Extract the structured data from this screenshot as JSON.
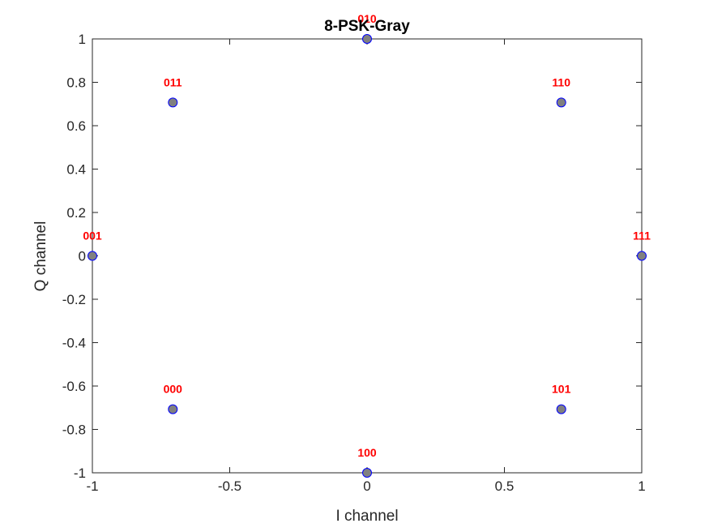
{
  "chart_data": {
    "type": "scatter",
    "title": "8-PSK-Gray",
    "xlabel": "I channel",
    "ylabel": "Q channel",
    "xlim": [
      -1,
      1
    ],
    "ylim": [
      -1,
      1
    ],
    "xticks": [
      -1,
      -0.5,
      0,
      0.5,
      1
    ],
    "xtick_labels": [
      "-1",
      "-0.5",
      "0",
      "0.5",
      "1"
    ],
    "yticks": [
      -1,
      -0.8,
      -0.6,
      -0.4,
      -0.2,
      0,
      0.2,
      0.4,
      0.6,
      0.8,
      1
    ],
    "ytick_labels": [
      "-1",
      "-0.8",
      "-0.6",
      "-0.4",
      "-0.2",
      "0",
      "0.2",
      "0.4",
      "0.6",
      "0.8",
      "1"
    ],
    "grid": false,
    "points": [
      {
        "x": -1,
        "y": 0,
        "label": "001"
      },
      {
        "x": -0.7071,
        "y": 0.7071,
        "label": "011"
      },
      {
        "x": 0,
        "y": 1,
        "label": "010"
      },
      {
        "x": 0.7071,
        "y": 0.7071,
        "label": "110"
      },
      {
        "x": 1,
        "y": 0,
        "label": "111"
      },
      {
        "x": 0.7071,
        "y": -0.7071,
        "label": "101"
      },
      {
        "x": 0,
        "y": -1,
        "label": "100"
      },
      {
        "x": -0.7071,
        "y": -0.7071,
        "label": "000"
      }
    ],
    "colors": {
      "marker_fill": "#808080",
      "marker_edge": "#0000ff",
      "label": "#ff0000",
      "axes": "#262626"
    }
  }
}
